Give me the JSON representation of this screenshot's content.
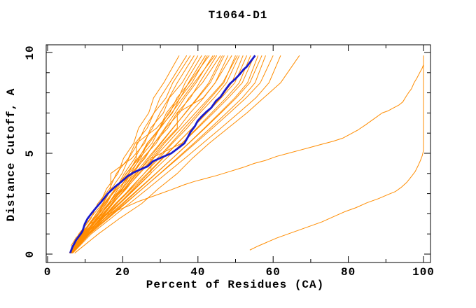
{
  "title": "T1064-D1",
  "chart_data": {
    "type": "line",
    "title": "T1064-D1",
    "xlabel": "Percent of Residues (CA)",
    "ylabel": "Distance Cutoff, A",
    "xlim": [
      0,
      100
    ],
    "ylim": [
      0,
      10
    ],
    "grid": false,
    "legend": "none",
    "x_major_ticks": [
      0,
      20,
      40,
      60,
      80,
      100
    ],
    "x_minor_ticks": [
      10,
      30,
      50,
      70,
      90
    ],
    "y_major_ticks": [
      0,
      5,
      10
    ],
    "y_minor_ticks": [
      1,
      2,
      3,
      4,
      6,
      7,
      8,
      9
    ],
    "colors": {
      "model_line": "#ff8c00",
      "highlight_line": "#1a1acc",
      "axis": "#000000",
      "background": "#ffffff"
    },
    "y_levels": [
      0.05,
      1,
      1.75,
      2.5,
      3.25,
      4,
      4.75,
      5.5,
      6.25,
      7,
      7.75,
      8.5,
      9.85
    ],
    "model_lines_x": [
      [
        6.2,
        8.9,
        10.7,
        13.9,
        15.7,
        18.7,
        20.2,
        22.9,
        24.2,
        26.9,
        28.2,
        30.9,
        35
      ],
      [
        6.0,
        9.5,
        12.0,
        14.8,
        17.0,
        19.8,
        21.6,
        24.0,
        25.8,
        28.3,
        29.9,
        32.5,
        37
      ],
      [
        5.8,
        8.3,
        11.5,
        13.3,
        16.5,
        18.3,
        21.5,
        23.3,
        26.5,
        28.3,
        31.5,
        33.3,
        38
      ],
      [
        6.4,
        9.8,
        12.8,
        15.4,
        18.2,
        20.4,
        23.2,
        25.4,
        27.9,
        29.9,
        32.3,
        34.5,
        39
      ],
      [
        6.0,
        8.6,
        11.2,
        14.6,
        16.8,
        16.8,
        22.4,
        25.8,
        27.4,
        30.8,
        32.4,
        35.8,
        40
      ],
      [
        6.6,
        10.2,
        13.4,
        16.2,
        19.4,
        21.6,
        24.8,
        26.6,
        29.8,
        31.6,
        34.8,
        36.6,
        41
      ],
      [
        5.9,
        9.1,
        12.5,
        15.1,
        18.5,
        20.9,
        24.3,
        26.5,
        29.9,
        32.1,
        35.3,
        37.5,
        42
      ],
      [
        6.3,
        10.0,
        13.0,
        16.4,
        18.8,
        22.2,
        24.4,
        27.8,
        29.8,
        33.2,
        35.2,
        38.4,
        42.5
      ],
      [
        6.1,
        9.4,
        12.2,
        15.7,
        18.0,
        21.5,
        23.6,
        23.6,
        29.0,
        32.5,
        34.4,
        37.7,
        43
      ],
      [
        6.5,
        10.5,
        13.8,
        17.0,
        20.0,
        22.8,
        25.6,
        28.4,
        31.2,
        33.9,
        36.5,
        39.5,
        44
      ],
      [
        6.0,
        9.0,
        12.0,
        15.0,
        18.0,
        21.0,
        24.0,
        27.0,
        30.0,
        33.0,
        36.0,
        39.0,
        44.5
      ],
      [
        6.2,
        10.1,
        13.5,
        16.1,
        19.8,
        22.2,
        25.9,
        28.3,
        32.0,
        34.4,
        38.0,
        40.4,
        45
      ],
      [
        5.8,
        9.2,
        12.4,
        16.2,
        18.8,
        22.6,
        25.2,
        28.9,
        31.4,
        35.1,
        37.6,
        41.2,
        46
      ],
      [
        6.6,
        10.8,
        14.2,
        17.4,
        20.6,
        23.8,
        27.0,
        30.2,
        33.4,
        36.6,
        39.8,
        42.9,
        46.5
      ],
      [
        6.1,
        9.6,
        13.0,
        16.6,
        19.9,
        23.3,
        26.6,
        30.0,
        33.3,
        36.7,
        40.0,
        43.3,
        47
      ],
      [
        6.3,
        10.4,
        14.0,
        17.2,
        21.0,
        24.2,
        28.0,
        31.1,
        34.8,
        37.9,
        41.5,
        44.6,
        48
      ],
      [
        5.9,
        9.3,
        13.2,
        16.5,
        20.4,
        23.6,
        27.5,
        30.7,
        34.5,
        34.5,
        41.4,
        44.6,
        49
      ],
      [
        6.4,
        10.9,
        14.6,
        18.4,
        21.9,
        25.7,
        29.2,
        32.9,
        36.4,
        40.0,
        43.4,
        46.9,
        50
      ],
      [
        6.0,
        9.7,
        13.4,
        17.1,
        20.8,
        24.5,
        28.2,
        31.9,
        35.6,
        39.3,
        43.0,
        46.6,
        50.5
      ],
      [
        6.2,
        10.3,
        14.4,
        18.0,
        22.1,
        25.7,
        29.7,
        33.2,
        37.1,
        40.5,
        44.3,
        47.6,
        51
      ],
      [
        6.6,
        11.2,
        15.1,
        19.0,
        22.9,
        26.8,
        30.7,
        34.6,
        38.5,
        42.3,
        46.0,
        49.0,
        52
      ],
      [
        6.1,
        10.0,
        14.2,
        18.3,
        22.4,
        26.5,
        30.5,
        34.5,
        38.5,
        42.4,
        46.2,
        49.8,
        53
      ],
      [
        6.3,
        10.7,
        15.0,
        19.2,
        23.4,
        27.5,
        27.5,
        35.7,
        39.7,
        43.6,
        47.5,
        51.0,
        54
      ],
      [
        6.0,
        10.2,
        14.5,
        18.9,
        23.2,
        27.4,
        31.6,
        35.8,
        40.0,
        44.1,
        48.1,
        51.8,
        55
      ],
      [
        6.5,
        11.0,
        15.6,
        20.1,
        24.5,
        28.9,
        33.2,
        37.5,
        41.7,
        45.8,
        49.8,
        53.2,
        56
      ],
      [
        6.2,
        10.6,
        15.2,
        19.8,
        24.3,
        28.8,
        33.2,
        37.6,
        41.9,
        46.1,
        50.2,
        53.8,
        57
      ],
      [
        6.4,
        11.2,
        16.0,
        20.7,
        25.3,
        29.9,
        34.4,
        38.9,
        43.3,
        47.6,
        51.8,
        55.2,
        58
      ],
      [
        6.1,
        10.8,
        15.7,
        20.5,
        25.3,
        30.0,
        34.7,
        39.3,
        43.9,
        48.4,
        52.8,
        56.6,
        60
      ],
      [
        6.7,
        11.6,
        16.7,
        21.7,
        26.7,
        31.6,
        36.5,
        41.3,
        46.1,
        50.8,
        55.4,
        58.9,
        62
      ],
      [
        7.2,
        13.5,
        19.0,
        25.0,
        29.5,
        34.5,
        38.5,
        43.0,
        48.0,
        53.0,
        57.5,
        62.0,
        67
      ]
    ],
    "highlight_line": [
      [
        6.0,
        0.05
      ],
      [
        6.6,
        0.35
      ],
      [
        7.6,
        0.7
      ],
      [
        8.8,
        1.0
      ],
      [
        9.3,
        1.15
      ],
      [
        9.9,
        1.5
      ],
      [
        10.6,
        1.75
      ],
      [
        11.6,
        2.0
      ],
      [
        12.9,
        2.3
      ],
      [
        14.3,
        2.6
      ],
      [
        16.0,
        3.0
      ],
      [
        18.0,
        3.35
      ],
      [
        19.7,
        3.6
      ],
      [
        21.2,
        3.85
      ],
      [
        22.9,
        4.05
      ],
      [
        25.3,
        4.25
      ],
      [
        26.6,
        4.35
      ],
      [
        28.0,
        4.6
      ],
      [
        30.4,
        4.8
      ],
      [
        32.9,
        5.0
      ],
      [
        34.7,
        5.25
      ],
      [
        36.4,
        5.5
      ],
      [
        37.3,
        5.8
      ],
      [
        38.0,
        6.05
      ],
      [
        39.2,
        6.35
      ],
      [
        39.9,
        6.6
      ],
      [
        41.1,
        6.85
      ],
      [
        42.2,
        7.05
      ],
      [
        43.5,
        7.25
      ],
      [
        44.8,
        7.6
      ],
      [
        46.0,
        7.8
      ],
      [
        47.3,
        8.15
      ],
      [
        48.5,
        8.45
      ],
      [
        50.0,
        8.7
      ],
      [
        51.0,
        8.9
      ],
      [
        52.1,
        9.15
      ],
      [
        53.0,
        9.3
      ],
      [
        54.0,
        9.55
      ],
      [
        55.2,
        9.85
      ]
    ],
    "outlier_lines": [
      [
        [
          6.2,
          0.4
        ],
        [
          7.5,
          0.8
        ],
        [
          9.0,
          1.1
        ],
        [
          11.0,
          1.45
        ],
        [
          13.0,
          1.7
        ],
        [
          15.0,
          1.9
        ],
        [
          17.5,
          2.1
        ],
        [
          21.0,
          2.35
        ],
        [
          24.0,
          2.6
        ],
        [
          27.0,
          2.8
        ],
        [
          30.0,
          3.0
        ],
        [
          33.0,
          3.2
        ],
        [
          36.5,
          3.45
        ],
        [
          39.0,
          3.6
        ],
        [
          42.0,
          3.75
        ],
        [
          45.0,
          3.9
        ],
        [
          48.5,
          4.1
        ],
        [
          52.0,
          4.3
        ],
        [
          55.0,
          4.5
        ],
        [
          58.0,
          4.65
        ],
        [
          61.0,
          4.85
        ],
        [
          64.0,
          5.0
        ],
        [
          67.0,
          5.15
        ],
        [
          70.0,
          5.3
        ],
        [
          73.0,
          5.45
        ],
        [
          76.0,
          5.6
        ],
        [
          78.5,
          5.75
        ],
        [
          80.5,
          5.95
        ],
        [
          82.5,
          6.15
        ],
        [
          84.5,
          6.4
        ],
        [
          86.0,
          6.6
        ],
        [
          87.5,
          6.8
        ],
        [
          89.0,
          7.0
        ],
        [
          90.5,
          7.1
        ],
        [
          92.0,
          7.25
        ],
        [
          93.5,
          7.4
        ],
        [
          94.5,
          7.55
        ],
        [
          95.3,
          7.8
        ],
        [
          96.0,
          8.0
        ],
        [
          96.8,
          8.2
        ],
        [
          97.5,
          8.5
        ],
        [
          98.3,
          8.75
        ],
        [
          99.0,
          9.0
        ],
        [
          99.6,
          9.2
        ],
        [
          100.0,
          9.4
        ],
        [
          100.0,
          9.85
        ]
      ],
      [
        [
          53.8,
          0.2
        ],
        [
          56.0,
          0.4
        ],
        [
          58.5,
          0.6
        ],
        [
          61.0,
          0.8
        ],
        [
          64.0,
          1.0
        ],
        [
          67.0,
          1.2
        ],
        [
          70.0,
          1.4
        ],
        [
          73.0,
          1.6
        ],
        [
          76.0,
          1.85
        ],
        [
          79.0,
          2.1
        ],
        [
          82.0,
          2.3
        ],
        [
          85.0,
          2.55
        ],
        [
          88.0,
          2.75
        ],
        [
          90.5,
          2.95
        ],
        [
          92.5,
          3.1
        ],
        [
          94.0,
          3.3
        ],
        [
          95.5,
          3.55
        ],
        [
          96.8,
          3.85
        ],
        [
          97.8,
          4.1
        ],
        [
          98.6,
          4.4
        ],
        [
          99.2,
          4.65
        ],
        [
          99.7,
          4.9
        ],
        [
          100.0,
          5.15
        ],
        [
          100.0,
          9.85
        ]
      ]
    ]
  }
}
